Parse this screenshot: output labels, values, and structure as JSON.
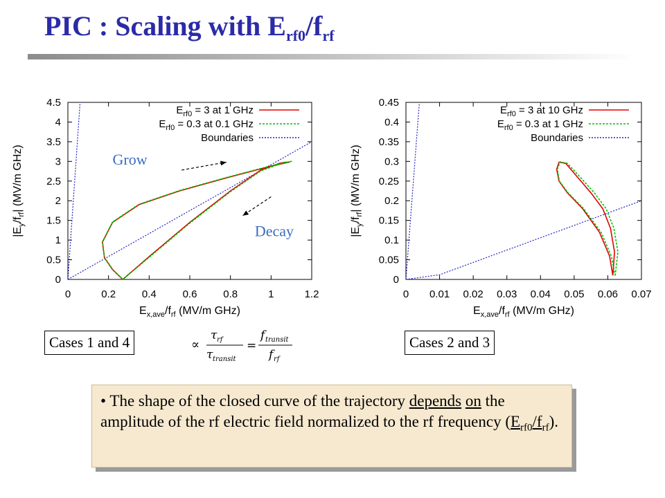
{
  "title": {
    "main": "PIC : Scaling with E",
    "sub1": "rf0",
    "mid": "/f",
    "sub2": "rf"
  },
  "chart_data": [
    {
      "type": "line",
      "xlabel": "E",
      "xlabel_sub": "x,ave",
      "xlabel_rest": "/f",
      "xlabel_sub2": "rf",
      "xlabel_unit": " (MV/m GHz)",
      "ylabel": "|E",
      "ylabel_sub": "y",
      "ylabel_mid": "/f",
      "ylabel_sub2": "rf",
      "ylabel_unit": "| (MV/m GHz)",
      "xlim": [
        0,
        1.2
      ],
      "ylim": [
        0,
        4.5
      ],
      "xticks": [
        "0",
        "0.2",
        "0.4",
        "0.6",
        "0.8",
        "1",
        "1.2"
      ],
      "yticks": [
        "0",
        "0.5",
        "1",
        "1.5",
        "2",
        "2.5",
        "3",
        "3.5",
        "4",
        "4.5"
      ],
      "legend_position": "top-right",
      "legend": [
        {
          "pre": "E",
          "sub": "rf0",
          "post": " = 3 at 1 GHz",
          "color": "#e00000",
          "dash": ""
        },
        {
          "pre": "E",
          "sub": "rf0",
          "post": " = 0.3 at 0.1 GHz",
          "color": "#00c000",
          "dash": "3,2"
        },
        {
          "pre": "",
          "sub": "",
          "post": "Boundaries",
          "color": "#2020c8",
          "dash": "2,2"
        }
      ],
      "series": [
        {
          "name": "Erf0 = 3 at 1 GHz",
          "color": "#e00000",
          "x": [
            0.27,
            0.4,
            0.6,
            0.8,
            0.95,
            1.04,
            1.07,
            1.09,
            1.0,
            0.78,
            0.55,
            0.35,
            0.22,
            0.17,
            0.18,
            0.22,
            0.27
          ],
          "y": [
            0.0,
            0.58,
            1.45,
            2.25,
            2.78,
            2.95,
            2.98,
            2.98,
            2.88,
            2.58,
            2.25,
            1.9,
            1.45,
            0.95,
            0.55,
            0.25,
            0.0
          ]
        },
        {
          "name": "Erf0 = 0.3 at 0.1 GHz",
          "color": "#00c000",
          "x": [
            0.27,
            0.4,
            0.6,
            0.8,
            0.95,
            1.04,
            1.07,
            1.1,
            1.0,
            0.78,
            0.55,
            0.35,
            0.22,
            0.17,
            0.18,
            0.22,
            0.27
          ],
          "y": [
            0.0,
            0.56,
            1.43,
            2.23,
            2.76,
            2.93,
            2.97,
            3.0,
            2.89,
            2.59,
            2.26,
            1.91,
            1.46,
            0.96,
            0.56,
            0.26,
            0.0
          ]
        },
        {
          "name": "Boundaries",
          "color": "#2020c8",
          "x": [
            0.0,
            0.06
          ],
          "y": [
            0.0,
            4.5
          ]
        },
        {
          "name": "Boundaries",
          "color": "#2020c8",
          "x": [
            0.0,
            1.2
          ],
          "y": [
            0.0,
            3.5
          ]
        }
      ],
      "annotations": [
        {
          "text": "Grow",
          "x": 0.22,
          "y": 2.92
        },
        {
          "text": "Decay",
          "x": 0.92,
          "y": 1.1
        }
      ],
      "arrows": [
        {
          "x1": 0.56,
          "y1": 2.78,
          "x2": 0.78,
          "y2": 2.98
        },
        {
          "x1": 1.0,
          "y1": 2.1,
          "x2": 0.86,
          "y2": 1.62
        }
      ]
    },
    {
      "type": "line",
      "xlabel": "E",
      "xlabel_sub": "x,ave",
      "xlabel_rest": "/f",
      "xlabel_sub2": "rf",
      "xlabel_unit": " (MV/m GHz)",
      "ylabel": "|E",
      "ylabel_sub": "y",
      "ylabel_mid": "/f",
      "ylabel_sub2": "rf",
      "ylabel_unit": "| (MV/m GHz)",
      "xlim": [
        0,
        0.07
      ],
      "ylim": [
        0,
        0.45
      ],
      "xticks": [
        "0",
        "0.01",
        "0.02",
        "0.03",
        "0.04",
        "0.05",
        "0.06",
        "0.07"
      ],
      "yticks": [
        "0",
        "0.05",
        "0.1",
        "0.15",
        "0.2",
        "0.25",
        "0.3",
        "0.35",
        "0.4",
        "0.45"
      ],
      "legend_position": "top-right",
      "legend": [
        {
          "pre": "E",
          "sub": "rf0",
          "post": " = 3 at 10 GHz",
          "color": "#e00000",
          "dash": ""
        },
        {
          "pre": "E",
          "sub": "rf0",
          "post": " = 0.3 at 1 GHz",
          "color": "#00c000",
          "dash": "3,2"
        },
        {
          "pre": "",
          "sub": "",
          "post": "Boundaries",
          "color": "#2020c8",
          "dash": "2,2"
        }
      ],
      "series": [
        {
          "name": "Erf0 = 3 at 10 GHz",
          "color": "#e00000",
          "x": [
            0.0615,
            0.062,
            0.0608,
            0.0585,
            0.055,
            0.051,
            0.0475,
            0.0455,
            0.0448,
            0.0455,
            0.048,
            0.0525,
            0.0575,
            0.0605,
            0.0615
          ],
          "y": [
            0.01,
            0.07,
            0.13,
            0.18,
            0.22,
            0.26,
            0.295,
            0.298,
            0.28,
            0.25,
            0.22,
            0.18,
            0.12,
            0.06,
            0.01
          ]
        },
        {
          "name": "Erf0 = 0.3 at 1 GHz",
          "color": "#00c000",
          "x": [
            0.0622,
            0.063,
            0.0618,
            0.0595,
            0.056,
            0.0518,
            0.048,
            0.0458,
            0.045,
            0.0456,
            0.0482,
            0.0528,
            0.058,
            0.061,
            0.0622
          ],
          "y": [
            0.01,
            0.07,
            0.13,
            0.18,
            0.22,
            0.26,
            0.295,
            0.299,
            0.28,
            0.25,
            0.22,
            0.18,
            0.12,
            0.06,
            0.01
          ]
        },
        {
          "name": "Boundaries",
          "color": "#2020c8",
          "x": [
            0.0,
            0.004
          ],
          "y": [
            0.0,
            0.45
          ]
        },
        {
          "name": "Boundaries",
          "color": "#2020c8",
          "x": [
            0.0,
            0.01,
            0.07
          ],
          "y": [
            0.0,
            0.012,
            0.2
          ]
        }
      ],
      "annotations": [],
      "arrows": []
    }
  ],
  "cases": {
    "left": "Cases 1 and 4",
    "right": "Cases 2 and 3"
  },
  "formula": {
    "propto": "∝",
    "tau": "τ",
    "rf": "rf",
    "transit": "transit",
    "eq": "=",
    "f": "f"
  },
  "note": {
    "bullet": "•",
    "text1": " The shape of the closed curve of the trajectory ",
    "underline1": "depends",
    "underline2": "on",
    "text2": " the amplitude of the rf electric field normalized to the rf frequency (",
    "e": "E",
    "e_sub": "rf0",
    "slash": "/f",
    "f_sub": "rf",
    "text3": ")."
  }
}
